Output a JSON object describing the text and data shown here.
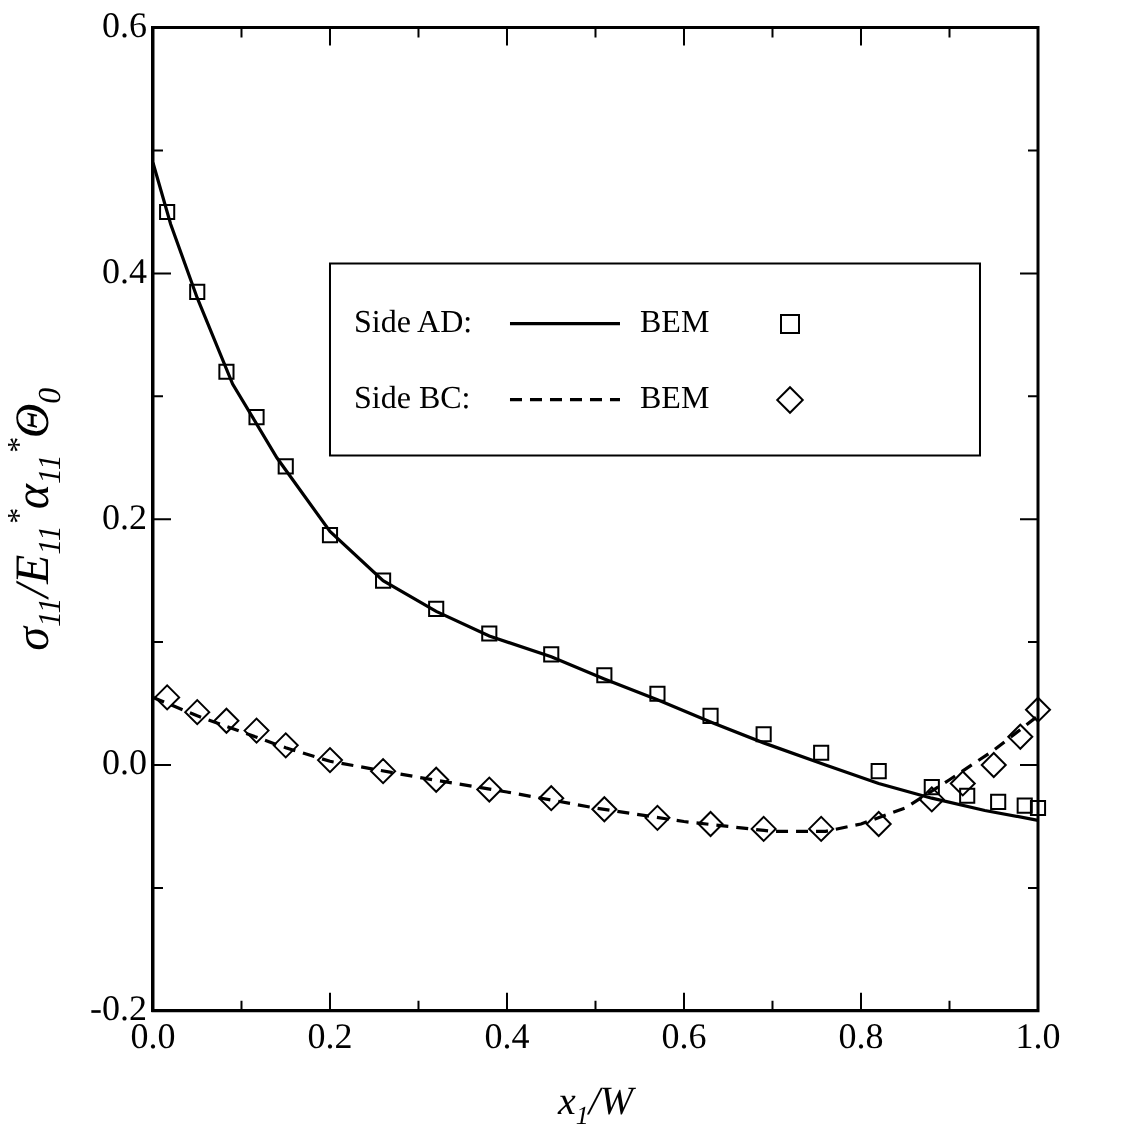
{
  "chart_data": {
    "type": "line",
    "xlabel": "x$_{1}$/W",
    "ylabel": "σ$_{11}$/E$_{11}$$^{*}$α$_{11}$$^{*}$Θ$_{0}$",
    "xlim": [
      0,
      1
    ],
    "ylim": [
      -0.2,
      0.6
    ],
    "xticks": [
      {
        "value": 0,
        "label": "0.0"
      },
      {
        "value": 0.1,
        "label": null
      },
      {
        "value": 0.2,
        "label": "0.2"
      },
      {
        "value": 0.3,
        "label": null
      },
      {
        "value": 0.4,
        "label": "0.4"
      },
      {
        "value": 0.5,
        "label": null
      },
      {
        "value": 0.6,
        "label": "0.6"
      },
      {
        "value": 0.7,
        "label": null
      },
      {
        "value": 0.8,
        "label": "0.8"
      },
      {
        "value": 0.9,
        "label": null
      },
      {
        "value": 1,
        "label": "1.0"
      }
    ],
    "yticks": [
      {
        "value": -0.2,
        "label": "-0.2"
      },
      {
        "value": -0.1,
        "label": null
      },
      {
        "value": 0,
        "label": "0.0"
      },
      {
        "value": 0.1,
        "label": null
      },
      {
        "value": 0.2,
        "label": "0.2"
      },
      {
        "value": 0.3,
        "label": null
      },
      {
        "value": 0.4,
        "label": "0.4"
      },
      {
        "value": 0.5,
        "label": null
      },
      {
        "value": 0.6,
        "label": "0.6"
      }
    ],
    "grid": false,
    "legend": "top right",
    "annotations": [
      "Side AD:",
      "Side BC:"
    ],
    "series": [
      {
        "name": "BEM",
        "type": "line",
        "color": "#000000",
        "line_style": "solid",
        "marker": "none",
        "x": [
          0,
          0.02,
          0.05,
          0.09,
          0.14,
          0.2,
          0.26,
          0.32,
          0.38,
          0.45,
          0.51,
          0.57,
          0.63,
          0.69,
          0.76,
          0.82,
          0.88,
          0.94,
          1.0
        ],
        "values": [
          0.49,
          0.44,
          0.38,
          0.31,
          0.25,
          0.19,
          0.15,
          0.125,
          0.105,
          0.088,
          0.07,
          0.053,
          0.035,
          0.018,
          0.0,
          -0.015,
          -0.027,
          -0.037,
          -0.045
        ]
      },
      {
        "type": "scatter",
        "color": "#000000",
        "marker": "square",
        "x": [
          0.016,
          0.05,
          0.083,
          0.117,
          0.15,
          0.2,
          0.26,
          0.32,
          0.38,
          0.45,
          0.51,
          0.57,
          0.63,
          0.69,
          0.755,
          0.82,
          0.88,
          0.92,
          0.955,
          0.985,
          1.0
        ],
        "values": [
          0.45,
          0.385,
          0.32,
          0.283,
          0.243,
          0.187,
          0.15,
          0.127,
          0.107,
          0.09,
          0.073,
          0.058,
          0.04,
          0.025,
          0.01,
          -0.005,
          -0.018,
          -0.025,
          -0.03,
          -0.033,
          -0.035
        ]
      },
      {
        "name": "BEM",
        "type": "line",
        "color": "#000000",
        "line_style": "dashed",
        "marker": "none",
        "x": [
          0,
          0.05,
          0.1,
          0.15,
          0.2,
          0.3,
          0.4,
          0.5,
          0.6,
          0.7,
          0.76,
          0.8,
          0.85,
          0.9,
          0.95,
          1.0
        ],
        "values": [
          0.055,
          0.04,
          0.027,
          0.014,
          0.003,
          -0.01,
          -0.022,
          -0.035,
          -0.046,
          -0.054,
          -0.054,
          -0.048,
          -0.035,
          -0.012,
          0.012,
          0.04
        ]
      },
      {
        "type": "scatter",
        "color": "#000000",
        "marker": "diamond",
        "x": [
          0.016,
          0.05,
          0.083,
          0.117,
          0.15,
          0.2,
          0.26,
          0.32,
          0.38,
          0.45,
          0.51,
          0.57,
          0.63,
          0.69,
          0.755,
          0.82,
          0.88,
          0.915,
          0.95,
          0.98,
          1.0
        ],
        "values": [
          0.055,
          0.043,
          0.036,
          0.028,
          0.016,
          0.004,
          -0.005,
          -0.012,
          -0.02,
          -0.027,
          -0.036,
          -0.043,
          -0.048,
          -0.052,
          -0.052,
          -0.048,
          -0.028,
          -0.015,
          0.0,
          0.023,
          0.045
        ]
      }
    ]
  }
}
